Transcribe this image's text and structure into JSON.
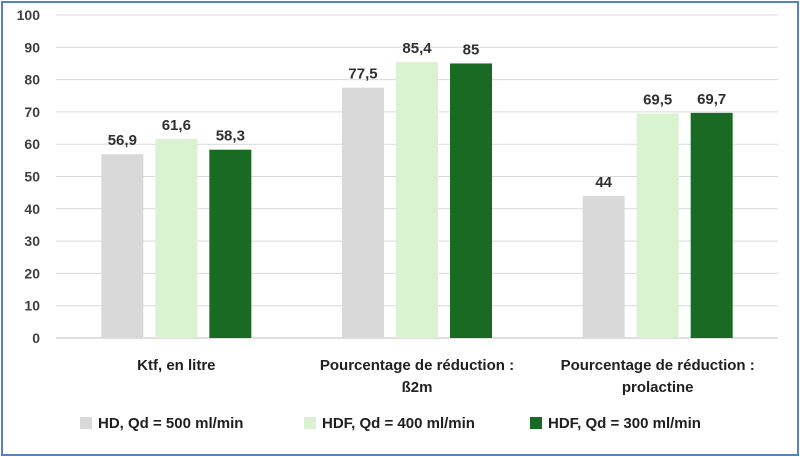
{
  "chart_data": {
    "type": "bar",
    "title": "",
    "xlabel": "",
    "ylabel": "",
    "ylim": [
      0,
      100
    ],
    "yticks": [
      0,
      10,
      20,
      30,
      40,
      50,
      60,
      70,
      80,
      90,
      100
    ],
    "grid": true,
    "legend_position": "bottom",
    "categories": [
      [
        "Ktf, en litre"
      ],
      [
        "Pourcentage de réduction :",
        "ß2m"
      ],
      [
        "Pourcentage de réduction :",
        "prolactine"
      ]
    ],
    "series": [
      {
        "name": "HD, Qd = 500 ml/min",
        "color": "#d9d9d9",
        "values": [
          56.9,
          77.5,
          44
        ],
        "labels": [
          "56,9",
          "77,5",
          "44"
        ]
      },
      {
        "name": "HDF, Qd = 400  ml/min",
        "color": "#d9f2d0",
        "values": [
          61.6,
          85.4,
          69.5
        ],
        "labels": [
          "61,6",
          "85,4",
          "69,5"
        ]
      },
      {
        "name": "HDF, Qd = 300  ml/min",
        "color": "#196b24",
        "values": [
          58.3,
          85,
          69.7
        ],
        "labels": [
          "58,3",
          "85",
          "69,7"
        ]
      }
    ]
  }
}
